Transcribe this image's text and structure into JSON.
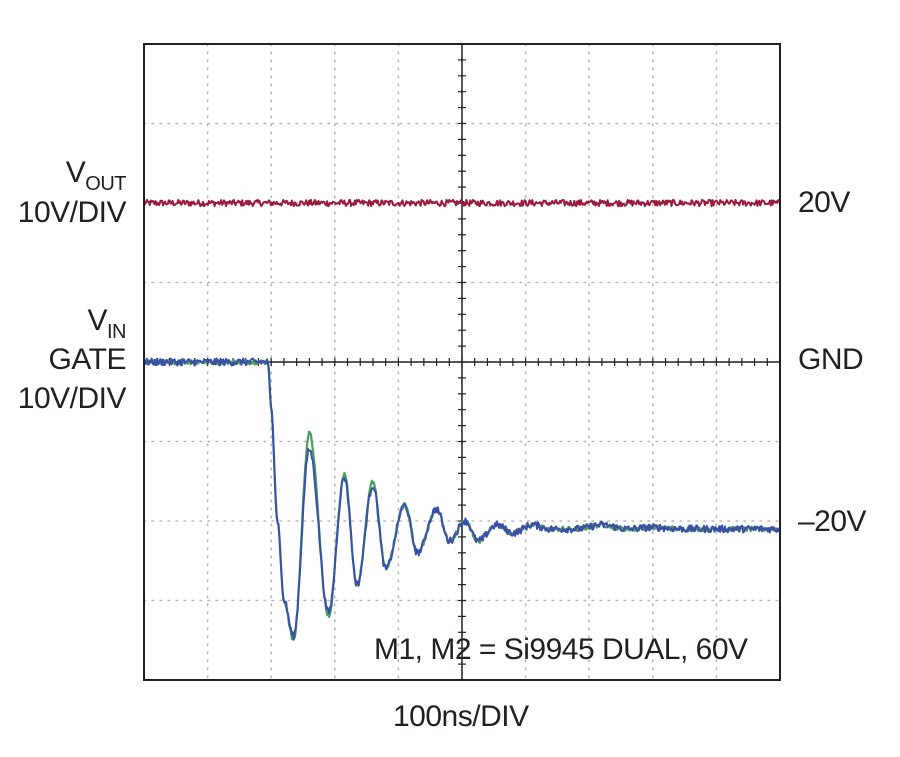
{
  "chart_data": {
    "type": "line",
    "title": "",
    "xlabel": "100ns/DIV",
    "x_unit": "ns",
    "x_per_div": 100,
    "x_divisions": 10,
    "y_divisions": 8,
    "y_per_div_volts": 10,
    "grid": true,
    "left_labels": {
      "vout": {
        "main": "V",
        "sub": "OUT",
        "scale": "10V/DIV"
      },
      "vin": {
        "main": "V",
        "sub": "IN",
        "line2": "GATE",
        "scale": "10V/DIV"
      }
    },
    "right_labels": [
      "20V",
      "GND",
      "–20V"
    ],
    "annotation": "M1, M2 = Si9945 DUAL, 60V",
    "series": [
      {
        "name": "V_OUT",
        "color": "#9b1b3f",
        "noise_v": 0.4,
        "x_ns": [
          0,
          1000
        ],
        "y_v": [
          20,
          20
        ]
      },
      {
        "name": "V_IN (GATE), overlay",
        "color": "#4aa05c",
        "noise_v": 0.3,
        "x_ns": [
          0,
          195,
          200,
          210,
          220,
          235,
          260,
          290,
          315,
          335,
          360,
          380,
          410,
          430,
          460,
          480,
          505,
          525,
          555,
          580,
          610,
          640,
          680,
          720,
          760,
          800,
          850,
          900,
          950,
          1000
        ],
        "y_v": [
          0,
          0,
          -6,
          -20,
          -30,
          -35,
          -9,
          -32,
          -14,
          -28,
          -15,
          -26,
          -18,
          -24,
          -18.5,
          -22.5,
          -20,
          -22.5,
          -20.5,
          -21.5,
          -20.5,
          -21,
          -21,
          -20.5,
          -21,
          -20.8,
          -21,
          -21,
          -21,
          -21
        ]
      },
      {
        "name": "V_IN (GATE)",
        "color": "#3a4fa8",
        "noise_v": 0.45,
        "x_ns": [
          0,
          195,
          200,
          210,
          220,
          235,
          260,
          290,
          315,
          335,
          360,
          380,
          410,
          430,
          460,
          480,
          505,
          525,
          555,
          580,
          610,
          640,
          680,
          720,
          760,
          800,
          850,
          900,
          950,
          1000
        ],
        "y_v": [
          0,
          0,
          -6,
          -20,
          -30,
          -34.5,
          -11,
          -31.5,
          -14.5,
          -28,
          -15.5,
          -26,
          -18,
          -24,
          -18.5,
          -22.5,
          -20,
          -22.5,
          -20.5,
          -21.5,
          -20.5,
          -21,
          -21,
          -20.5,
          -21,
          -20.8,
          -21,
          -21,
          -21,
          -21
        ]
      }
    ]
  }
}
